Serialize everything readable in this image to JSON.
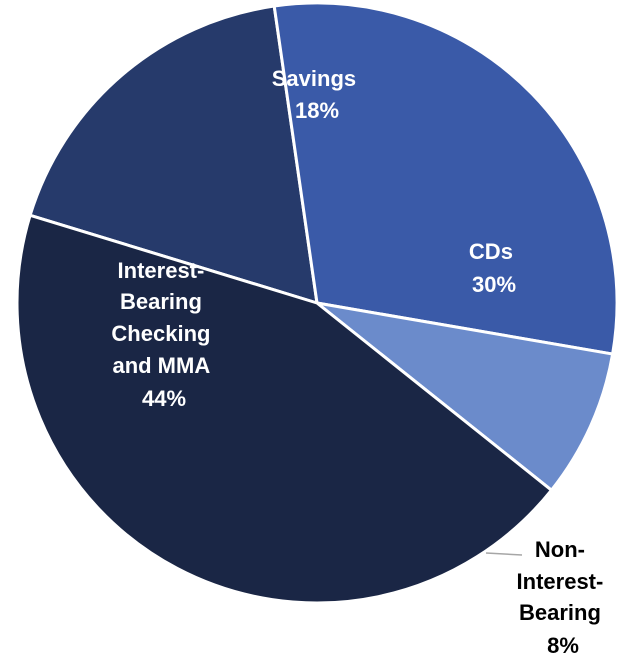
{
  "chart_data": {
    "type": "pie",
    "slices": [
      {
        "label": "Savings",
        "value": 18,
        "display": "18%",
        "color": "#263a6b",
        "label_color": "#ffffff"
      },
      {
        "label": "CDs",
        "value": 30,
        "display": "30%",
        "color": "#3a5aa8",
        "label_color": "#ffffff"
      },
      {
        "label": "Non-Interest-Bearing",
        "value": 8,
        "display": "8%",
        "color": "#6b8bcb",
        "label_color": "#000000"
      },
      {
        "label": "Interest-Bearing Checking and MMA",
        "value": 44,
        "display": "44%",
        "color": "#1a2645",
        "label_color": "#ffffff"
      }
    ],
    "slice_border_color": "#ffffff",
    "leader_line_color": "#a6a6a6"
  }
}
